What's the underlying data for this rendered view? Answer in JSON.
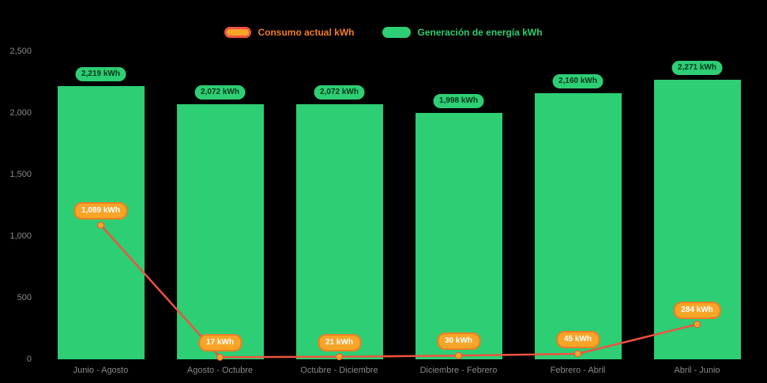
{
  "colors": {
    "background": "#000000",
    "bar": "#2dce74",
    "bar_badge_text": "#05361a",
    "line": "#ee5340",
    "marker": "#f7a528",
    "line_badge_border": "#ef7d22",
    "line_badge_text": "#ffffff",
    "axis_text": "#8a8a8a",
    "legend_consumo_text": "#ef7d22",
    "legend_generacion_text": "#2dce74"
  },
  "chart_data": {
    "type": "combo-bar-line",
    "categories": [
      "Junio - Agosto",
      "Agosto - Octubre",
      "Octubre - Diciembre",
      "Diciembre - Febrero",
      "Febrero - Abril",
      "Abril - Junio"
    ],
    "series": [
      {
        "name": "Consumo actual kWh",
        "type": "line",
        "values": [
          1089,
          17,
          21,
          30,
          45,
          284
        ],
        "labels": [
          "1,089 kWh",
          "17 kWh",
          "21 kWh",
          "30 kWh",
          "45 kWh",
          "284 kWh"
        ]
      },
      {
        "name": "Generación de energía kWh",
        "type": "bar",
        "values": [
          2219,
          2072,
          2072,
          1998,
          2160,
          2271
        ],
        "labels": [
          "2,219 kWh",
          "2,072 kWh",
          "2,072 kWh",
          "1,998 kWh",
          "2,160 kWh",
          "2,271 kWh"
        ]
      }
    ],
    "ylim": [
      0,
      2500
    ],
    "yticks": [
      "0",
      "500",
      "1,000",
      "1,500",
      "2,000",
      "2,500"
    ],
    "ytick_values": [
      0,
      500,
      1000,
      1500,
      2000,
      2500
    ],
    "grid": false,
    "legend_position": "top-center"
  }
}
